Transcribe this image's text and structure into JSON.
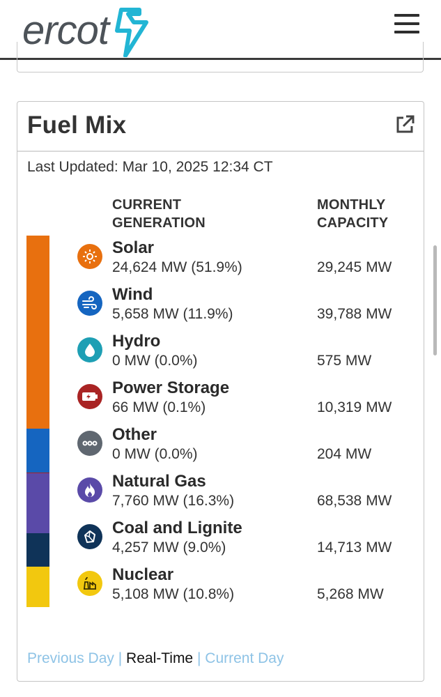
{
  "header": {
    "logo_text": "ercot",
    "logo_color": "#4d5359",
    "bolt_color": "#22b5d4"
  },
  "card": {
    "title": "Fuel Mix",
    "last_updated": "Last Updated: Mar 10, 2025 12:34 CT",
    "columns": {
      "generation_line1": "CURRENT",
      "generation_line2": "GENERATION",
      "capacity_line1": "MONTHLY",
      "capacity_line2": "CAPACITY"
    },
    "fuels": [
      {
        "name": "Solar",
        "generation": "24,624 MW (51.9%)",
        "capacity": "29,245 MW",
        "share": 51.9,
        "color": "#e8700f",
        "icon": "sun-icon"
      },
      {
        "name": "Wind",
        "generation": "5,658 MW (11.9%)",
        "capacity": "39,788 MW",
        "share": 11.9,
        "color": "#1565c0",
        "icon": "wind-icon"
      },
      {
        "name": "Hydro",
        "generation": "0 MW (0.0%)",
        "capacity": "575 MW",
        "share": 0.0,
        "color": "#1e9fb4",
        "icon": "water-drop-icon"
      },
      {
        "name": "Power Storage",
        "generation": "66 MW (0.1%)",
        "capacity": "10,319 MW",
        "share": 0.1,
        "color": "#a92424",
        "icon": "battery-icon"
      },
      {
        "name": "Other",
        "generation": "0 MW (0.0%)",
        "capacity": "204 MW",
        "share": 0.0,
        "color": "#5f6770",
        "icon": "dots-icon"
      },
      {
        "name": "Natural Gas",
        "generation": "7,760 MW (16.3%)",
        "capacity": "68,538 MW",
        "share": 16.3,
        "color": "#5a4aa8",
        "icon": "flame-icon"
      },
      {
        "name": "Coal and Lignite",
        "generation": "4,257 MW (9.0%)",
        "capacity": "14,713 MW",
        "share": 9.0,
        "color": "#0f3358",
        "icon": "coal-icon"
      },
      {
        "name": "Nuclear",
        "generation": "5,108 MW (10.8%)",
        "capacity": "5,268 MW",
        "share": 10.8,
        "color": "#f2c80f",
        "icon": "nuclear-plant-icon"
      }
    ],
    "footer": {
      "previous_day": "Previous Day",
      "separator": "|",
      "real_time": "Real-Time",
      "current_day": "Current Day"
    }
  }
}
